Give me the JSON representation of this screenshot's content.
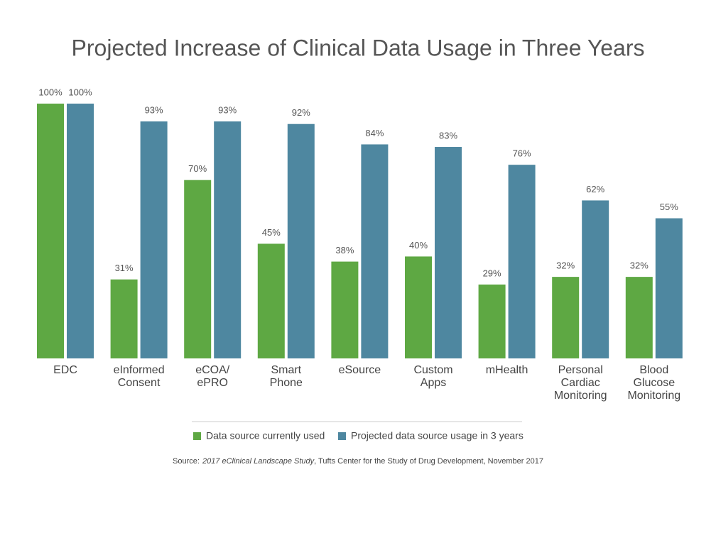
{
  "chart_data": {
    "type": "bar",
    "title": "Projected Increase of Clinical Data Usage in Three Years",
    "categories": [
      [
        "EDC"
      ],
      [
        "eInformed",
        "Consent"
      ],
      [
        "eCOA/",
        "ePRO"
      ],
      [
        "Smart",
        "Phone"
      ],
      [
        "eSource"
      ],
      [
        "Custom",
        "Apps"
      ],
      [
        "mHealth"
      ],
      [
        "Personal",
        "Cardiac",
        "Monitoring"
      ],
      [
        "Blood",
        "Glucose",
        "Monitoring"
      ]
    ],
    "series": [
      {
        "name": "Data source currently used",
        "color": "#5ea843",
        "values": [
          100,
          31,
          70,
          45,
          38,
          40,
          29,
          32,
          32
        ],
        "value_labels": [
          "100%",
          "31%",
          "70%",
          "45%",
          "38%",
          "40%",
          "29%",
          "32%",
          "32%"
        ]
      },
      {
        "name": "Projected data source usage in 3 years",
        "color": "#4e87a0",
        "values": [
          100,
          93,
          93,
          92,
          84,
          83,
          76,
          62,
          55
        ],
        "value_labels": [
          "100%",
          "93%",
          "93%",
          "92%",
          "84%",
          "83%",
          "76%",
          "62%",
          "55%"
        ]
      }
    ],
    "ylim": [
      0,
      100
    ],
    "source": {
      "label": "Source:",
      "title": "2017 eClinical Landscape Study",
      "rest": ", Tufts Center for the Study of Drug Development, November 2017"
    }
  }
}
